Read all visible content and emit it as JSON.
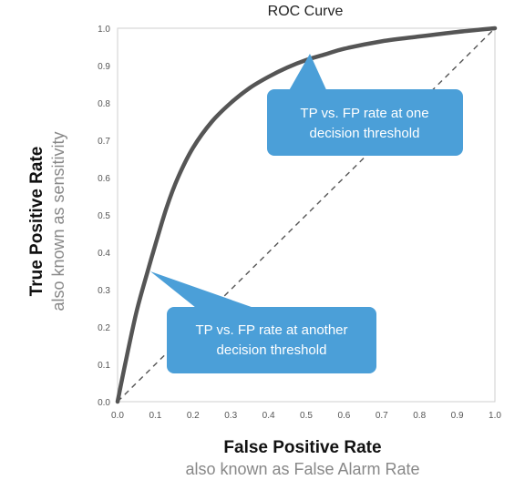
{
  "chart_data": {
    "type": "line",
    "title": "ROC Curve",
    "xlabel": "False Positive Rate",
    "xlabel_sub": "also known as False Alarm Rate",
    "ylabel": "True Positive Rate",
    "ylabel_sub": "also known as sensitivity",
    "xlim": [
      0,
      1
    ],
    "ylim": [
      0,
      1
    ],
    "x_ticks": [
      "0.0",
      "0.1",
      "0.2",
      "0.3",
      "0.4",
      "0.5",
      "0.6",
      "0.7",
      "0.8",
      "0.9",
      "1.0"
    ],
    "y_ticks": [
      "0.0",
      "0.1",
      "0.2",
      "0.3",
      "0.4",
      "0.5",
      "0.6",
      "0.7",
      "0.8",
      "0.9",
      "1.0"
    ],
    "grid": false,
    "series": [
      {
        "color": "#555555",
        "x": [
          0,
          0.02,
          0.05,
          0.08,
          0.1,
          0.13,
          0.16,
          0.2,
          0.25,
          0.3,
          0.35,
          0.4,
          0.45,
          0.5,
          0.55,
          0.6,
          0.7,
          0.8,
          0.9,
          1.0
        ],
        "y": [
          0,
          0.1,
          0.24,
          0.35,
          0.42,
          0.52,
          0.6,
          0.68,
          0.75,
          0.8,
          0.84,
          0.87,
          0.895,
          0.915,
          0.93,
          0.945,
          0.965,
          0.978,
          0.99,
          1.0
        ]
      },
      {
        "style": "dashed",
        "color": "#555555",
        "x": [
          0,
          1
        ],
        "y": [
          0,
          1
        ]
      }
    ],
    "annotations": [
      {
        "text_lines": [
          "TP vs. FP rate at one",
          "decision threshold"
        ],
        "point": [
          0.51,
          0.93
        ],
        "color": "#4b9fd8"
      },
      {
        "text_lines": [
          "TP vs. FP rate at another",
          "decision threshold"
        ],
        "point": [
          0.09,
          0.35
        ],
        "color": "#4b9fd8"
      }
    ]
  }
}
